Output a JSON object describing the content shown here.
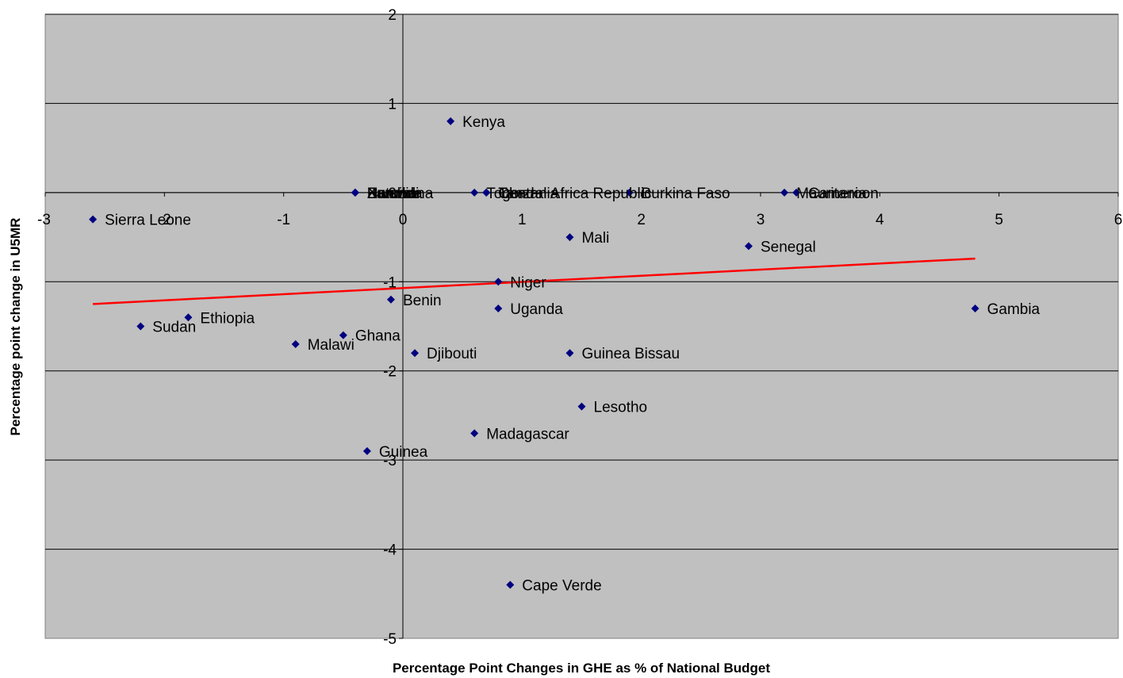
{
  "chart_data": {
    "type": "scatter",
    "xlabel": "Percentage Point Changes in GHE as % of National Budget",
    "ylabel": "Percentage point change in U5MR",
    "xlim": [
      -3,
      6
    ],
    "ylim": [
      -5,
      2
    ],
    "x_ticks": [
      "-3",
      "-2",
      "-1",
      "0",
      "1",
      "2",
      "3",
      "4",
      "5",
      "6"
    ],
    "y_ticks": [
      "2",
      "1",
      "0",
      "-1",
      "-2",
      "-3",
      "-4",
      "-5"
    ],
    "grid": "horizontal",
    "colors": {
      "plot_background": "#c0c0c0",
      "marker": "#000080",
      "trendline": "#ff0000"
    },
    "points": [
      {
        "label": "Sierra Leone",
        "x": -2.6,
        "y": -0.3
      },
      {
        "label": "Sudan",
        "x": -2.2,
        "y": -1.5
      },
      {
        "label": "Ethiopia",
        "x": -1.8,
        "y": -1.4
      },
      {
        "label": "Malawi",
        "x": -0.9,
        "y": -1.7
      },
      {
        "label": "Ghana",
        "x": -0.5,
        "y": -1.6
      },
      {
        "label": "Botswana",
        "x": -0.4,
        "y": 0.0
      },
      {
        "label": "Rwanda",
        "x": -0.4,
        "y": 0.0
      },
      {
        "label": "Namibia",
        "x": -0.4,
        "y": 0.0
      },
      {
        "label": "Burundi",
        "x": -0.4,
        "y": 0.0
      },
      {
        "label": "Zambia",
        "x": -0.4,
        "y": 0.0
      },
      {
        "label": "Guinea",
        "x": -0.3,
        "y": -2.9
      },
      {
        "label": "Benin",
        "x": -0.1,
        "y": -1.2
      },
      {
        "label": "Djibouti",
        "x": 0.1,
        "y": -1.8
      },
      {
        "label": "Kenya",
        "x": 0.4,
        "y": 0.8
      },
      {
        "label": "Madagascar",
        "x": 0.6,
        "y": -2.7
      },
      {
        "label": "Togo",
        "x": 0.6,
        "y": 0.0
      },
      {
        "label": "Tanzania",
        "x": 0.7,
        "y": 0.0
      },
      {
        "label": "Central Africa Republic",
        "x": 0.7,
        "y": 0.0
      },
      {
        "label": "Chad",
        "x": 0.7,
        "y": 0.0
      },
      {
        "label": "Niger",
        "x": 0.8,
        "y": -1.0
      },
      {
        "label": "Uganda",
        "x": 0.8,
        "y": -1.3
      },
      {
        "label": "Cape Verde",
        "x": 0.9,
        "y": -4.4
      },
      {
        "label": "Mali",
        "x": 1.4,
        "y": -0.5
      },
      {
        "label": "Guinea Bissau",
        "x": 1.4,
        "y": -1.8
      },
      {
        "label": "Lesotho",
        "x": 1.5,
        "y": -2.4
      },
      {
        "label": "Burkina Faso",
        "x": 1.9,
        "y": 0.0
      },
      {
        "label": "Senegal",
        "x": 2.9,
        "y": -0.6
      },
      {
        "label": "Mauritania",
        "x": 3.2,
        "y": 0.0
      },
      {
        "label": "Cameroon",
        "x": 3.3,
        "y": 0.0
      },
      {
        "label": "Gambia",
        "x": 4.8,
        "y": -1.3
      }
    ],
    "trendline": {
      "x": [
        -2.6,
        4.8
      ],
      "y": [
        -1.25,
        -0.74
      ]
    }
  }
}
